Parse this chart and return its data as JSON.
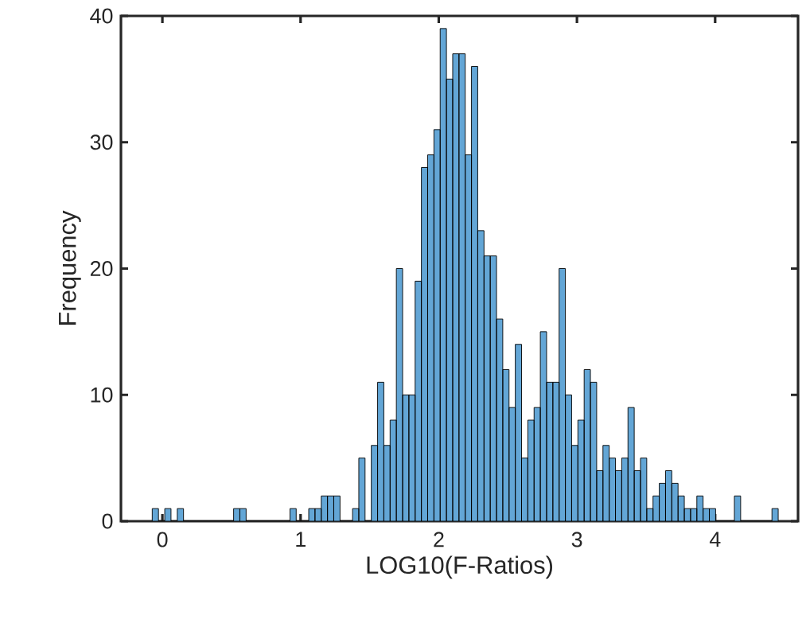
{
  "chart_data": {
    "type": "histogram",
    "xlabel": "LOG10(F-Ratios)",
    "ylabel": "Frequency",
    "bins": [
      -0.0736,
      -0.0283,
      0.017,
      0.0623,
      0.1076,
      0.1529,
      0.1982,
      0.2435,
      0.2888,
      0.3341,
      0.3794,
      0.4247,
      0.47,
      0.5153,
      0.5606,
      0.6059,
      0.6512,
      0.6965,
      0.7418,
      0.7871,
      0.8324,
      0.8777,
      0.923,
      0.9683,
      1.0136,
      1.0589,
      1.1042,
      1.1495,
      1.1948,
      1.2401,
      1.2854,
      1.3307,
      1.376,
      1.4213,
      1.4666,
      1.5119,
      1.5572,
      1.6025,
      1.6478,
      1.6931,
      1.7384,
      1.7837,
      1.829,
      1.8743,
      1.9196,
      1.9649,
      2.0102,
      2.0555,
      2.1008,
      2.1461,
      2.1914,
      2.2367,
      2.282,
      2.3273,
      2.3726,
      2.4179,
      2.4632,
      2.5085,
      2.5538,
      2.5991,
      2.6444,
      2.6897,
      2.735,
      2.7803,
      2.8256,
      2.8709,
      2.9162,
      2.9615,
      3.0068,
      3.0521,
      3.0974,
      3.1427,
      3.188,
      3.2333,
      3.2786,
      3.3239,
      3.3692,
      3.4145,
      3.4598,
      3.5051,
      3.5504,
      3.5957,
      3.641,
      3.6863,
      3.7316,
      3.7769,
      3.8222,
      3.8675,
      3.9128,
      3.9581,
      4.0034,
      4.0487,
      4.094,
      4.1393,
      4.1846,
      4.2299,
      4.2752,
      4.3205,
      4.3658,
      4.4111,
      4.4564
    ],
    "values": [
      1,
      0,
      1,
      0,
      1,
      0,
      0,
      0,
      0,
      0,
      0,
      0,
      0,
      1,
      1,
      0,
      0,
      0,
      0,
      0,
      0,
      0,
      1,
      0,
      0,
      1,
      1,
      2,
      2,
      2,
      0,
      0,
      1,
      5,
      0,
      6,
      11,
      6,
      8,
      20,
      10,
      10,
      19,
      28,
      29,
      31,
      39,
      35,
      37,
      37,
      29,
      36,
      23,
      21,
      21,
      16,
      12,
      9,
      14,
      5,
      8,
      9,
      15,
      11,
      11,
      20,
      10,
      6,
      8,
      12,
      11,
      4,
      6,
      5,
      4,
      5,
      9,
      4,
      5,
      1,
      2,
      3,
      4,
      3,
      2,
      1,
      1,
      2,
      1,
      1,
      0,
      0,
      0,
      2,
      0,
      0,
      0,
      0,
      0,
      1
    ],
    "color": "#63a6d6",
    "xlim": [
      -0.3,
      4.6
    ],
    "ylim": [
      0,
      40
    ],
    "xticks": [
      0,
      1,
      2,
      3,
      4
    ],
    "yticks": [
      0,
      10,
      20,
      30,
      40
    ]
  }
}
